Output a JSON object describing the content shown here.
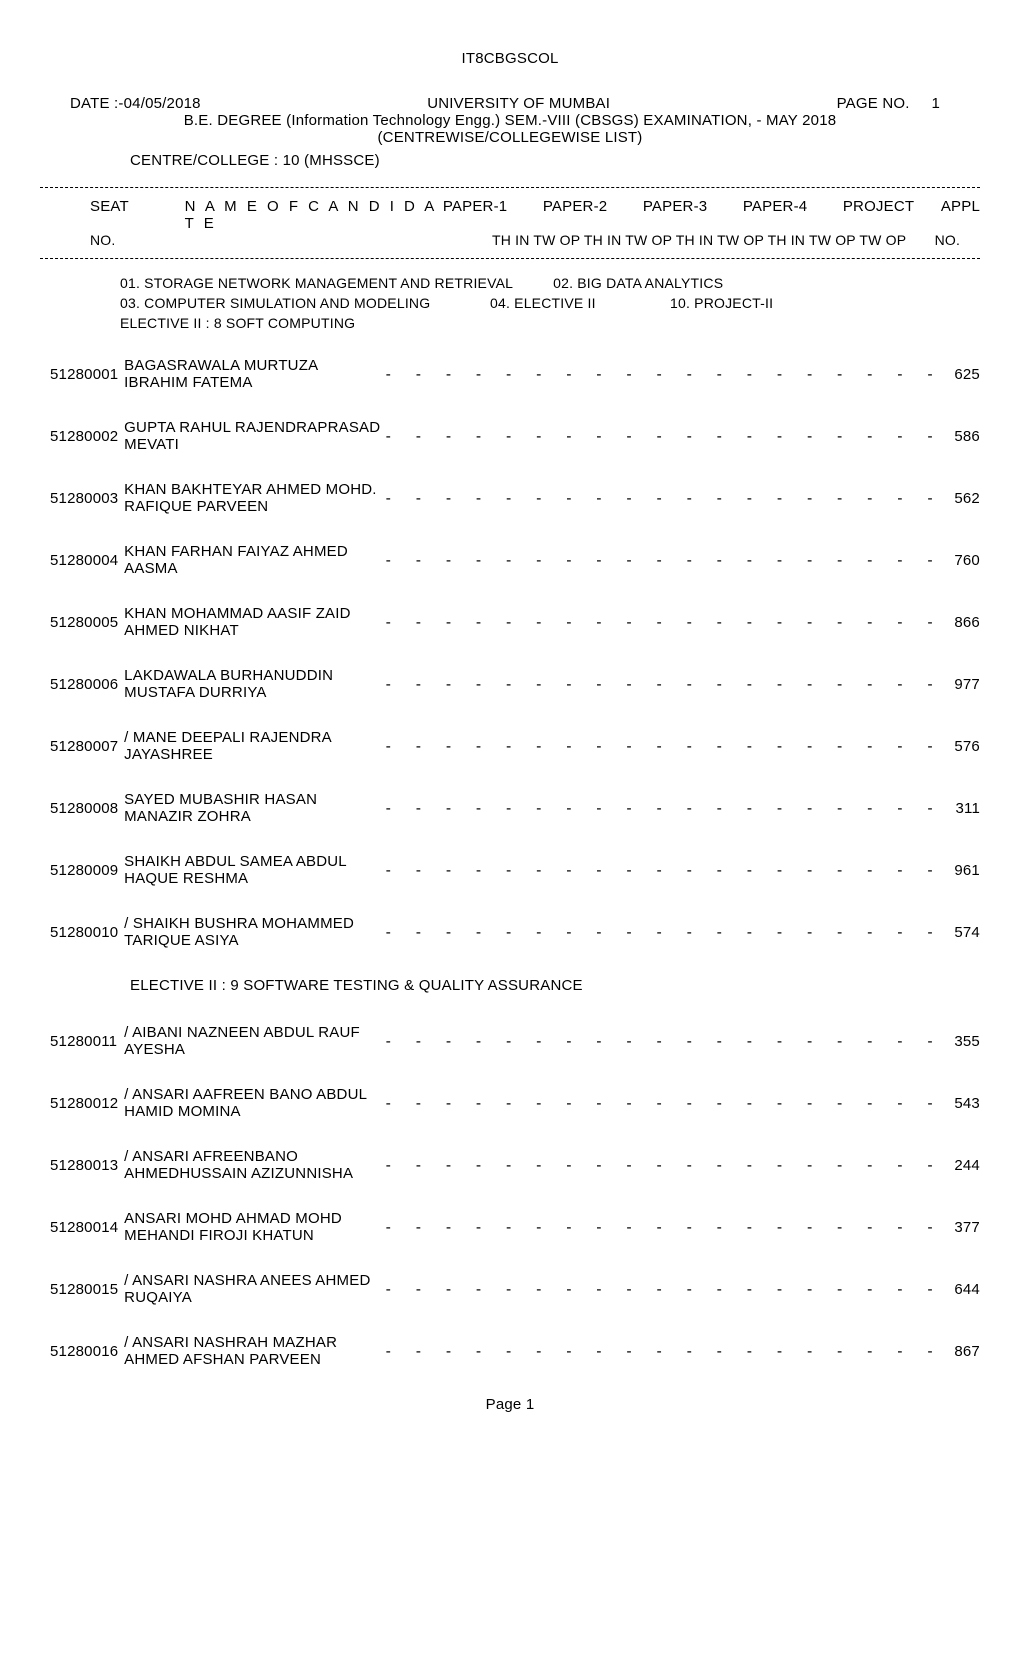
{
  "file_title": "IT8CBGSCOL",
  "date_label": "DATE :-04/05/2018",
  "university": "UNIVERSITY  OF  MUMBAI",
  "page_label": "PAGE NO.",
  "page_no": "1",
  "degree": "B.E. DEGREE (Information Technology Engg.) SEM.-VIII (CBSGS) EXAMINATION, - MAY 2018",
  "subline": "(CENTREWISE/COLLEGEWISE LIST)",
  "centre": "CENTRE/COLLEGE : 10 (MHSSCE)",
  "header": {
    "seat": "SEAT",
    "no": "NO.",
    "name": "N A M E   O F   C A N D I D A T E",
    "papers": [
      "PAPER-1",
      "PAPER-2",
      "PAPER-3",
      "PAPER-4"
    ],
    "project": "PROJECT",
    "appl": "APPL",
    "th_line": "TH IN TW OP  TH IN TW OP  TH IN TW OP  TH IN TW OP  TW OP",
    "no2": "NO."
  },
  "subjects": {
    "s1": "01. STORAGE NETWORK MANAGEMENT AND RETRIEVAL",
    "s2": "02. BIG DATA ANALYTICS",
    "s3": "03. COMPUTER SIMULATION AND MODELING",
    "s4": "04. ELECTIVE II",
    "s10": "10. PROJECT-II",
    "elective_a": "ELECTIVE II :   8  SOFT COMPUTING"
  },
  "elective_b": "ELECTIVE II :   9  SOFTWARE TESTING & QUALITY ASSURANCE",
  "dash_pattern": "-  -  -  -  -  -  -  -  -  -  -  -  -  -  -  -  -  -  -",
  "rows_a": [
    {
      "seat": "51280001",
      "name": "BAGASRAWALA MURTUZA IBRAHIM FATEMA",
      "appl": "625"
    },
    {
      "seat": "51280002",
      "name": "GUPTA RAHUL RAJENDRAPRASAD MEVATI",
      "appl": "586"
    },
    {
      "seat": "51280003",
      "name": "KHAN BAKHTEYAR AHMED MOHD. RAFIQUE PARVEEN",
      "appl": "562"
    },
    {
      "seat": "51280004",
      "name": "KHAN FARHAN FAIYAZ AHMED AASMA",
      "appl": "760"
    },
    {
      "seat": "51280005",
      "name": "KHAN MOHAMMAD AASIF ZAID AHMED NIKHAT",
      "appl": "866"
    },
    {
      "seat": "51280006",
      "name": "LAKDAWALA BURHANUDDIN MUSTAFA DURRIYA",
      "appl": "977"
    },
    {
      "seat": "51280007",
      "name": "/ MANE DEEPALI RAJENDRA JAYASHREE",
      "appl": "576"
    },
    {
      "seat": "51280008",
      "name": "SAYED MUBASHIR HASAN MANAZIR ZOHRA",
      "appl": "311"
    },
    {
      "seat": "51280009",
      "name": "SHAIKH  ABDUL SAMEA ABDUL HAQUE RESHMA",
      "appl": "961"
    },
    {
      "seat": "51280010",
      "name": "/ SHAIKH BUSHRA MOHAMMED TARIQUE ASIYA",
      "appl": "574"
    }
  ],
  "rows_b": [
    {
      "seat": "51280011",
      "name": "/ AIBANI NAZNEEN ABDUL RAUF AYESHA",
      "appl": "355"
    },
    {
      "seat": "51280012",
      "name": "/ ANSARI AAFREEN BANO ABDUL HAMID MOMINA",
      "appl": "543"
    },
    {
      "seat": "51280013",
      "name": "/ ANSARI AFREENBANO AHMEDHUSSAIN AZIZUNNISHA",
      "appl": "244"
    },
    {
      "seat": "51280014",
      "name": "ANSARI MOHD AHMAD MOHD MEHANDI FIROJI KHATUN",
      "appl": "377"
    },
    {
      "seat": "51280015",
      "name": "/ ANSARI NASHRA ANEES AHMED RUQAIYA",
      "appl": "644"
    },
    {
      "seat": "51280016",
      "name": "/ ANSARI NASHRAH MAZHAR AHMED AFSHAN PARVEEN",
      "appl": "867"
    }
  ],
  "page_footer": "Page 1"
}
